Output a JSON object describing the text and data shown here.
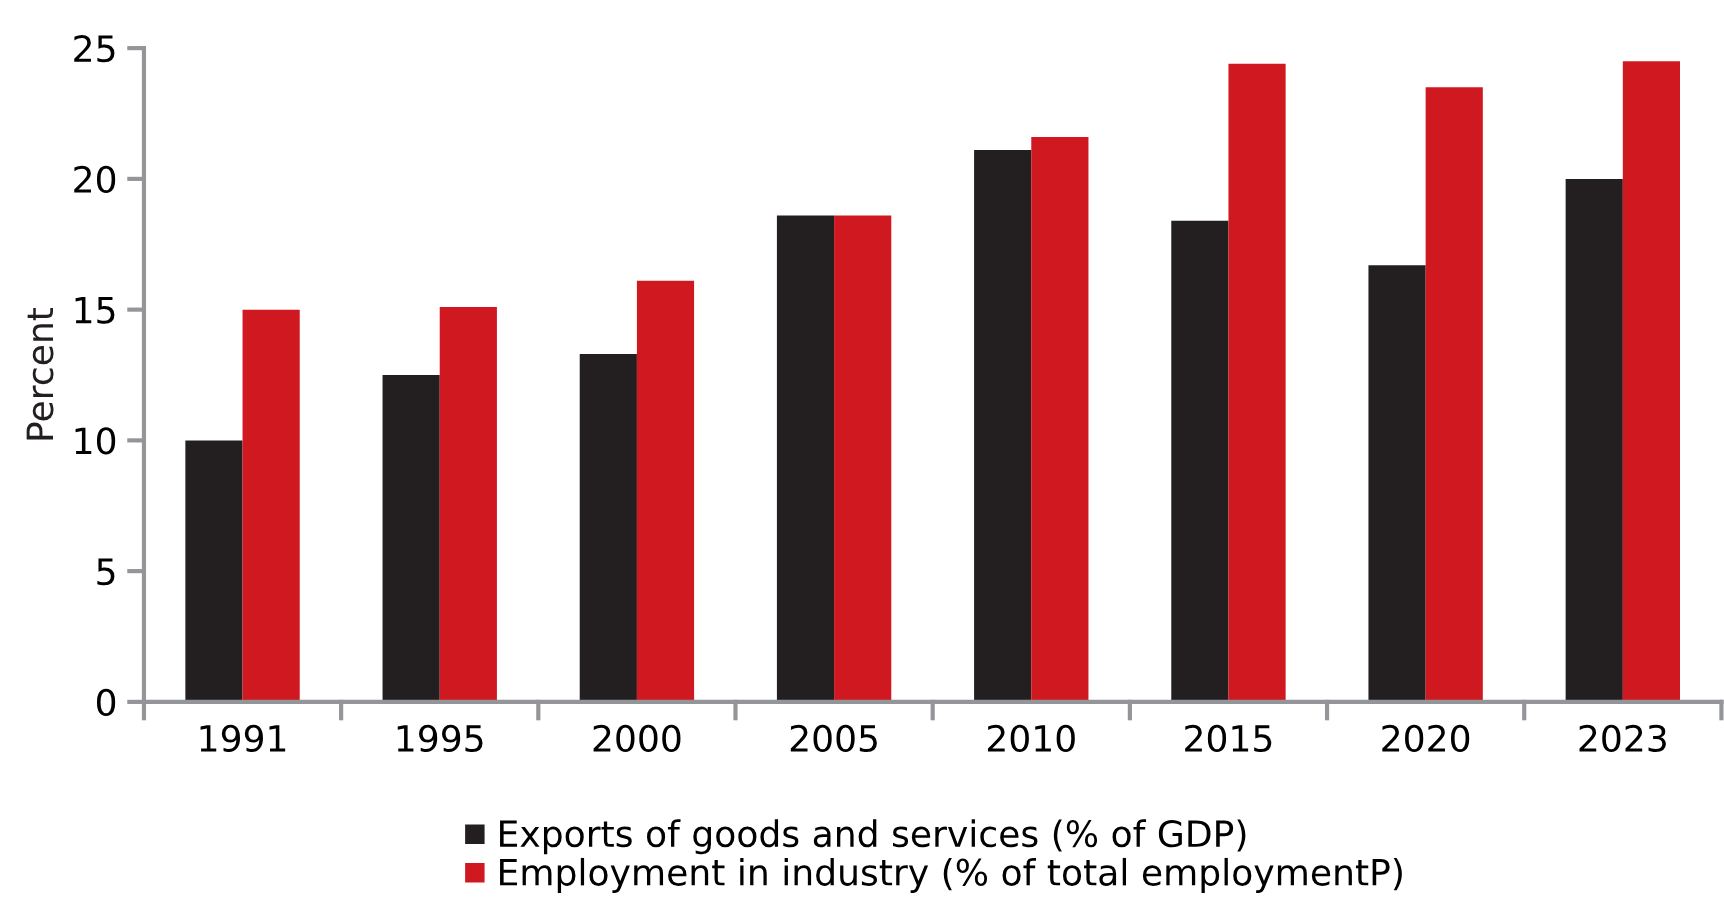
{
  "chart_data": {
    "type": "bar",
    "ylabel": "Percent",
    "categories": [
      "1991",
      "1995",
      "2000",
      "2005",
      "2010",
      "2015",
      "2020",
      "2023"
    ],
    "series": [
      {
        "name": "Exports of goods and services (% of GDP)",
        "color": "#231f20",
        "values": [
          10.0,
          12.5,
          13.3,
          18.6,
          21.1,
          18.4,
          16.7,
          20.0
        ]
      },
      {
        "name": "Employment in industry (% of total employmentP)",
        "color": "#cf1820",
        "values": [
          15.0,
          15.1,
          16.1,
          18.6,
          21.6,
          24.4,
          23.5,
          24.5
        ]
      }
    ],
    "ylim": [
      0,
      25
    ],
    "yticks": [
      0,
      5,
      10,
      15,
      20,
      25
    ],
    "grid": false,
    "legend": "bottom"
  }
}
